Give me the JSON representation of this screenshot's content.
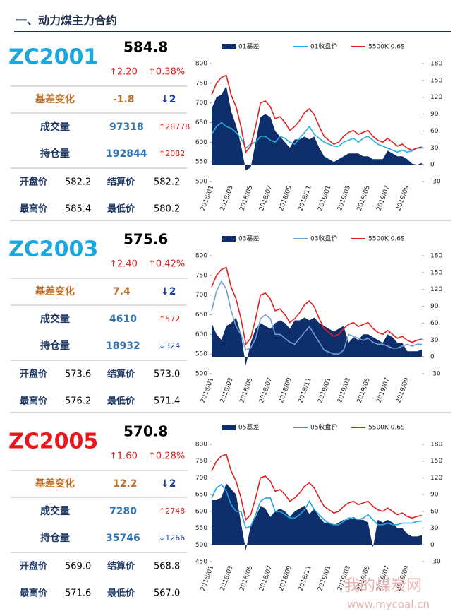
{
  "header": {
    "title": "一、动力煤主力合约"
  },
  "watermark": {
    "name": "我的煤炭网",
    "url": "www.mycoal.cn"
  },
  "panels": [
    {
      "code": "ZC2001",
      "code_color": "#1aa7df",
      "price": "584.8",
      "change": "↑2.20",
      "change_pct": "↑0.38%",
      "basis_label": "基差变化",
      "basis_change": "-1.8",
      "basis_change_rank": "↓2",
      "volume_label": "成交量",
      "volume": "97318",
      "volume_change": "↑28778",
      "oi_label": "持仓量",
      "oi": "192844",
      "oi_change": "↑2082",
      "open_label": "开盘价",
      "open": "582.2",
      "settle_label": "结算价",
      "settle": "582.2",
      "high_label": "最高价",
      "high": "585.4",
      "low_label": "最低价",
      "low": "580.2",
      "chart": {
        "type": "combo",
        "categories": [
          "2018/01",
          null,
          null,
          null,
          "2018/03",
          null,
          null,
          null,
          "2018/05",
          null,
          null,
          null,
          "2018/07",
          null,
          null,
          null,
          "2018/09",
          null,
          null,
          null,
          "2018/11",
          null,
          null,
          null,
          "2019/01",
          null,
          null,
          null,
          "2019/03",
          null,
          null,
          null,
          "2019/05",
          null,
          null,
          null,
          "2019/07",
          null,
          null,
          null,
          "2019/09",
          null,
          null,
          null
        ],
        "series": [
          {
            "name": "01基差",
            "color": "#0e2d6b",
            "kind": "area",
            "axis": "y2",
            "values": [
              100,
              120,
              125,
              140,
              95,
              70,
              35,
              -10,
              -5,
              40,
              85,
              90,
              85,
              60,
              50,
              40,
              30,
              45,
              45,
              50,
              45,
              50,
              30,
              15,
              10,
              5,
              10,
              15,
              20,
              20,
              20,
              15,
              15,
              10,
              10,
              10,
              25,
              20,
              15,
              15,
              10,
              2,
              0,
              3
            ]
          },
          {
            "name": "01收盘价",
            "color": "#22b0e0",
            "kind": "line",
            "values": [
              620,
              640,
              650,
              640,
              635,
              625,
              610,
              585,
              595,
              600,
              615,
              615,
              605,
              600,
              615,
              610,
              600,
              595,
              610,
              625,
              640,
              620,
              610,
              600,
              595,
              590,
              590,
              600,
              605,
              610,
              600,
              610,
              615,
              605,
              595,
              590,
              585,
              580,
              575,
              580,
              575,
              578,
              585,
              585
            ]
          },
          {
            "name": "5500K 0.6S",
            "color": "#e02020",
            "kind": "line",
            "values": [
              720,
              750,
              765,
              770,
              720,
              690,
              640,
              575,
              590,
              640,
              700,
              705,
              690,
              660,
              665,
              650,
              630,
              640,
              655,
              675,
              685,
              670,
              640,
              615,
              605,
              595,
              600,
              615,
              625,
              630,
              620,
              625,
              630,
              615,
              605,
              600,
              610,
              600,
              590,
              595,
              585,
              580,
              585,
              588
            ]
          }
        ],
        "ylim": [
          500,
          800
        ],
        "yticks": [
          500,
          550,
          600,
          650,
          700,
          750,
          800
        ],
        "y2lim": [
          -30,
          180
        ],
        "y2ticks": [
          -30,
          0,
          30,
          60,
          90,
          120,
          150,
          180
        ]
      }
    },
    {
      "code": "ZC2003",
      "code_color": "#1aa7df",
      "price": "575.6",
      "change": "↑2.40",
      "change_pct": "↑0.42%",
      "basis_label": "基差变化",
      "basis_change": "7.4",
      "basis_change_rank": "↓2",
      "volume_label": "成交量",
      "volume": "4610",
      "volume_change": "↑572",
      "oi_label": "持仓量",
      "oi": "18932",
      "oi_change": "↓324",
      "open_label": "开盘价",
      "open": "573.6",
      "settle_label": "结算价",
      "settle": "573.0",
      "high_label": "最高价",
      "high": "576.2",
      "low_label": "最低价",
      "low": "571.4",
      "chart": {
        "type": "combo",
        "categories": [
          "2018/01",
          null,
          null,
          null,
          "2018/03",
          null,
          null,
          null,
          "2018/05",
          null,
          null,
          null,
          "2018/07",
          null,
          null,
          null,
          "2018/09",
          null,
          null,
          null,
          "2018/11",
          null,
          null,
          null,
          "2019/01",
          null,
          null,
          null,
          "2019/03",
          null,
          null,
          null,
          "2019/05",
          null,
          null,
          null,
          "2019/07",
          null,
          null,
          null,
          "2019/09",
          null,
          null,
          null
        ],
        "series": [
          {
            "name": "03基差",
            "color": "#0e2d6b",
            "kind": "area",
            "axis": "y2",
            "values": [
              60,
              40,
              30,
              55,
              60,
              70,
              40,
              -15,
              25,
              50,
              60,
              55,
              50,
              60,
              65,
              60,
              50,
              65,
              65,
              70,
              65,
              70,
              60,
              55,
              50,
              45,
              50,
              55,
              25,
              35,
              30,
              40,
              40,
              35,
              30,
              25,
              40,
              35,
              25,
              25,
              10,
              10,
              10,
              13
            ]
          },
          {
            "name": "03收盘价",
            "color": "#6f9fd0",
            "kind": "line",
            "values": [
              660,
              710,
              735,
              715,
              660,
              620,
              600,
              560,
              565,
              590,
              640,
              650,
              640,
              600,
              600,
              590,
              580,
              575,
              590,
              605,
              620,
              600,
              580,
              560,
              555,
              550,
              550,
              560,
              600,
              595,
              590,
              585,
              590,
              580,
              575,
              575,
              570,
              565,
              565,
              570,
              575,
              570,
              575,
              575
            ]
          },
          {
            "name": "5500K 0.6S",
            "color": "#e02020",
            "kind": "line",
            "values": [
              720,
              750,
              765,
              770,
              720,
              690,
              640,
              575,
              590,
              640,
              700,
              705,
              690,
              660,
              665,
              650,
              630,
              640,
              655,
              675,
              685,
              670,
              640,
              615,
              605,
              595,
              600,
              615,
              625,
              630,
              620,
              625,
              630,
              615,
              605,
              600,
              610,
              600,
              590,
              595,
              585,
              580,
              585,
              588
            ]
          }
        ],
        "ylim": [
          500,
          800
        ],
        "yticks": [
          500,
          550,
          600,
          650,
          700,
          750,
          800
        ],
        "y2lim": [
          -30,
          180
        ],
        "y2ticks": [
          -30,
          0,
          30,
          60,
          90,
          120,
          150,
          180
        ]
      }
    },
    {
      "code": "ZC2005",
      "code_color": "#e8161c",
      "price": "570.8",
      "change": "↑1.60",
      "change_pct": "↑0.28%",
      "basis_label": "基差变化",
      "basis_change": "12.2",
      "basis_change_rank": "↓2",
      "volume_label": "成交量",
      "volume": "7280",
      "volume_change": "↑2748",
      "oi_label": "持仓量",
      "oi": "35746",
      "oi_change": "↓1266",
      "open_label": "开盘价",
      "open": "569.0",
      "settle_label": "结算价",
      "settle": "568.8",
      "high_label": "最高价",
      "high": "571.6",
      "low_label": "最低价",
      "low": "567.0",
      "chart": {
        "type": "combo",
        "categories": [
          "2018/01",
          null,
          null,
          null,
          "2018/03",
          null,
          null,
          null,
          "2018/05",
          null,
          null,
          null,
          "2018/07",
          null,
          null,
          null,
          "2018/09",
          null,
          null,
          null,
          "2018/11",
          null,
          null,
          null,
          "2019/01",
          null,
          null,
          null,
          "2019/03",
          null,
          null,
          null,
          "2019/05",
          null,
          null,
          null,
          "2019/07",
          null,
          null,
          null,
          "2019/09",
          null,
          null,
          null
        ],
        "series": [
          {
            "name": "05基差",
            "color": "#0e2d6b",
            "kind": "area",
            "axis": "y2",
            "values": [
              80,
              80,
              85,
              110,
              100,
              90,
              40,
              -10,
              35,
              50,
              70,
              65,
              50,
              60,
              65,
              60,
              50,
              60,
              65,
              70,
              55,
              65,
              50,
              40,
              40,
              35,
              40,
              45,
              45,
              50,
              45,
              45,
              40,
              -5,
              45,
              40,
              45,
              40,
              30,
              30,
              20,
              15,
              15,
              17
            ]
          },
          {
            "name": "05收盘价",
            "color": "#22a5e0",
            "kind": "line",
            "values": [
              640,
              670,
              680,
              660,
              620,
              600,
              600,
              550,
              555,
              590,
              630,
              640,
              640,
              600,
              600,
              590,
              580,
              580,
              590,
              605,
              630,
              605,
              590,
              575,
              565,
              560,
              560,
              570,
              580,
              580,
              575,
              580,
              590,
              575,
              560,
              560,
              565,
              560,
              560,
              565,
              565,
              565,
              570,
              571
            ]
          },
          {
            "name": "5500K 0.6S",
            "color": "#e02020",
            "kind": "line",
            "values": [
              720,
              750,
              765,
              770,
              720,
              690,
              640,
              575,
              590,
              640,
              700,
              705,
              690,
              660,
              665,
              650,
              630,
              640,
              655,
              675,
              685,
              670,
              640,
              615,
              605,
              595,
              600,
              615,
              625,
              630,
              620,
              625,
              630,
              615,
              605,
              600,
              610,
              600,
              590,
              595,
              585,
              580,
              585,
              588
            ]
          }
        ],
        "ylim": [
          450,
          800
        ],
        "yticks": [
          450,
          500,
          550,
          600,
          650,
          700,
          750,
          800
        ],
        "y2lim": [
          -30,
          180
        ],
        "y2ticks": [
          -30,
          0,
          30,
          60,
          90,
          120,
          150,
          180
        ]
      }
    }
  ]
}
